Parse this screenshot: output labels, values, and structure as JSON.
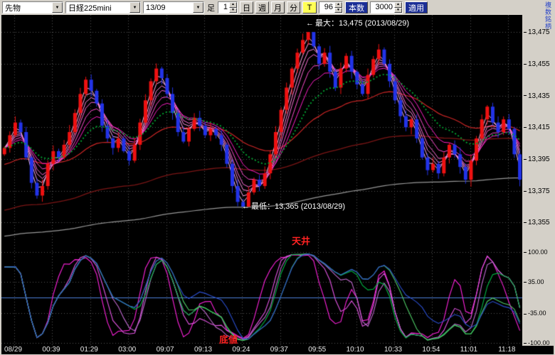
{
  "window": {
    "right_vertical_label": "複数銘柄"
  },
  "toolbar": {
    "category_select": "先物",
    "symbol_select": "日経225mini",
    "contract_select": "13/09",
    "interval_label": "足",
    "interval_value": "1",
    "period_buttons": [
      "日",
      "週",
      "月",
      "分"
    ],
    "tick_button": "T",
    "bars_value": "96",
    "bars_button": "本数",
    "count_value": "3000",
    "apply_button": "適用"
  },
  "annotations": {
    "max_label": "最大：13,475 (2013/08/29)",
    "min_label": "最低：13,365 (2013/08/29)",
    "ceiling_label": "天井",
    "bottom_label": "底値"
  },
  "price_axis": {
    "labels": [
      "13,475",
      "13,455",
      "13,435",
      "13,415",
      "13,395",
      "13,375",
      "13,355"
    ],
    "values": [
      13475,
      13455,
      13435,
      13415,
      13395,
      13375,
      13355
    ]
  },
  "osc_axis": {
    "labels": [
      "100.00",
      "35.00",
      "-35.00",
      "-100.00"
    ],
    "values": [
      100,
      35,
      -35,
      -100
    ]
  },
  "time_axis": {
    "labels": [
      "08/29",
      "00:39",
      "01:29",
      "03:00",
      "09:07",
      "09:13",
      "09:24",
      "09:37",
      "09:55",
      "10:10",
      "10:33",
      "10:54",
      "11:01",
      "11:18"
    ]
  },
  "chart_data": {
    "type": "candlestick+oscillator",
    "title": "日経225mini 13/09 1分足",
    "bars": 96,
    "price_range": [
      13340,
      13484
    ],
    "first_open": 13398,
    "clamp_high": 13475,
    "clamp_low": 13365,
    "closes": [
      13402,
      13410,
      13418,
      13412,
      13396,
      13380,
      13372,
      13378,
      13392,
      13400,
      13396,
      13404,
      13412,
      13424,
      13436,
      13445,
      13438,
      13430,
      13416,
      13408,
      13402,
      13408,
      13400,
      13394,
      13404,
      13418,
      13432,
      13444,
      13452,
      13446,
      13436,
      13424,
      13412,
      13406,
      13414,
      13421,
      13416,
      13410,
      13414,
      13410,
      13404,
      13392,
      13378,
      13368,
      13365,
      13374,
      13382,
      13378,
      13386,
      13398,
      13412,
      13426,
      13440,
      13452,
      13462,
      13470,
      13475,
      13466,
      13455,
      13462,
      13450,
      13440,
      13452,
      13460,
      13450,
      13442,
      13436,
      13448,
      13458,
      13464,
      13455,
      13444,
      13432,
      13422,
      13415,
      13420,
      13408,
      13396,
      13388,
      13392,
      13386,
      13396,
      13404,
      13398,
      13390,
      13382,
      13394,
      13408,
      13420,
      13428,
      13418,
      13412,
      13420,
      13414,
      13398,
      13382
    ],
    "annot_max": {
      "price": 13475,
      "date": "2013/08/29"
    },
    "annot_min": {
      "price": 13365,
      "date": "2013/08/29"
    },
    "colors": {
      "up": "#ee1111",
      "down": "#2233e8",
      "grid": "#565656",
      "zero_line": "#4d80d8"
    },
    "moving_averages": {
      "ribbon_periods": [
        2,
        3,
        4,
        5,
        7,
        10
      ],
      "ribbon_colors": [
        "#ffc2ef",
        "#ffa6e8",
        "#ff8ae0",
        "#ff6dd8",
        "#ff4cd0",
        "#ff1fc8"
      ],
      "green_dotted": {
        "period": 16,
        "seed": 13402,
        "color": "#00aa33"
      },
      "mid": {
        "period": 34,
        "seed": 13391,
        "color": "#cc2626"
      },
      "slow": {
        "period": 110,
        "seed": 13362,
        "color": "#7c1616"
      },
      "slowest": {
        "period": 260,
        "seed": 13346,
        "color": "#979797"
      }
    },
    "oscillator": {
      "range": [
        -100,
        100
      ],
      "series": [
        {
          "period": 5,
          "color": "#ff22dd"
        },
        {
          "period": 9,
          "color": "#e455e4"
        },
        {
          "period": 13,
          "color": "#c06ad0"
        },
        {
          "period": 17,
          "color": "#00bb44"
        },
        {
          "period": 25,
          "color": "#4ecc66"
        },
        {
          "period": 40,
          "color": "#2b4fd0"
        }
      ]
    }
  }
}
